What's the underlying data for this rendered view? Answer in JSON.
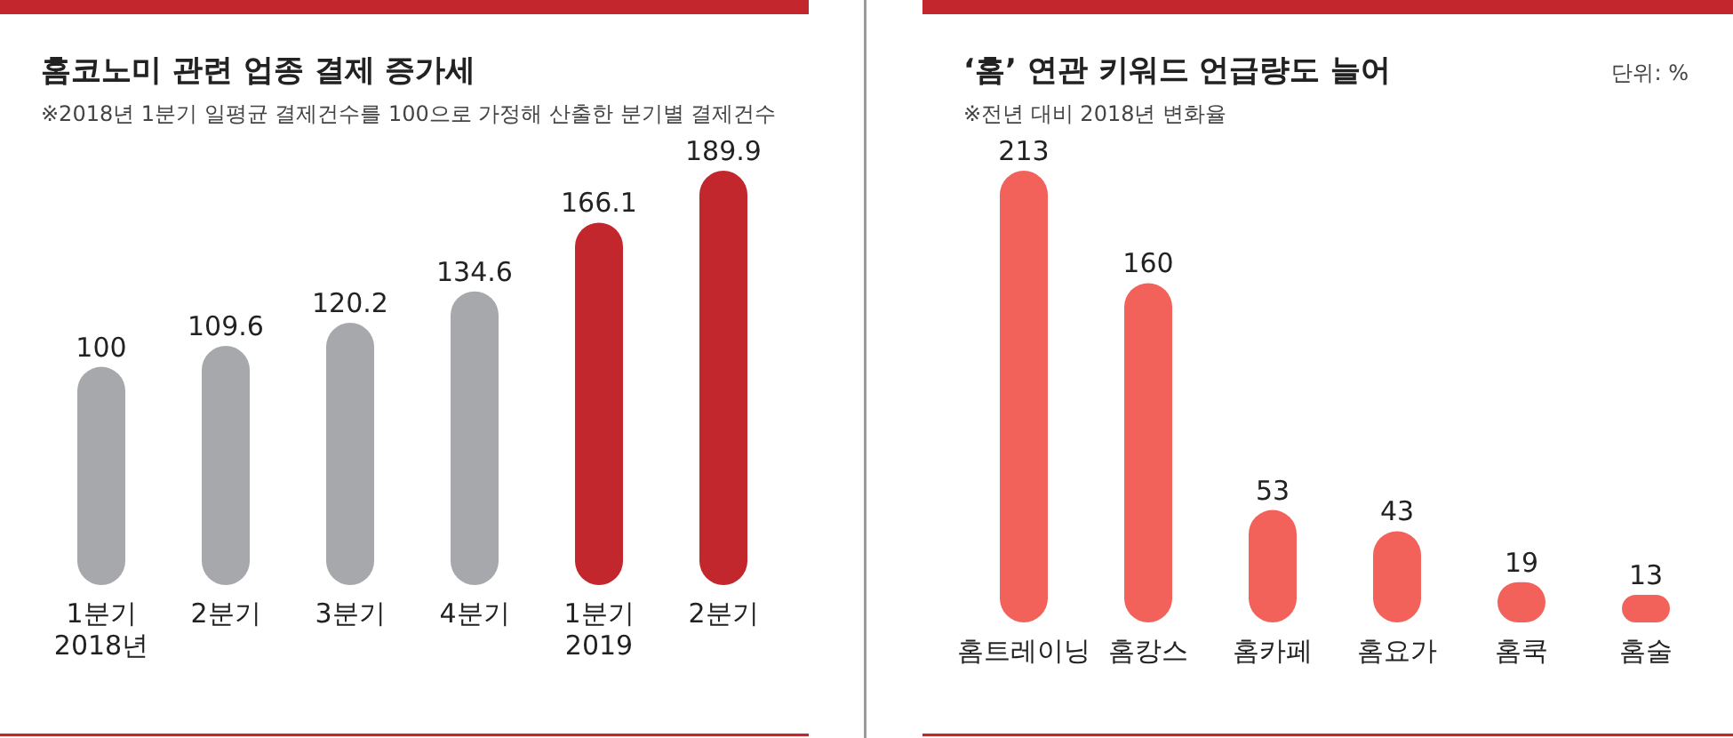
{
  "chart_data": [
    {
      "type": "bar",
      "title": "홈코노미 관련 업종 결제 증가세",
      "subtitle": "※2018년 1분기 일평균 결제건수를 100으로 가정해 산출한 분기별 결제건수",
      "categories": [
        "1분기\n2018년",
        "2분기",
        "3분기",
        "4분기",
        "1분기\n2019",
        "2분기"
      ],
      "values": [
        100,
        109.6,
        120.2,
        134.6,
        166.1,
        189.9
      ],
      "colors": [
        "#a7a8ab",
        "#a7a8ab",
        "#a7a8ab",
        "#a7a8ab",
        "#c1272d",
        "#c1272d"
      ],
      "data_labels": true,
      "tick_labels": "x"
    },
    {
      "type": "bar",
      "title": "‘홈’ 연관 키워드 언급량도 늘어",
      "subtitle": "※전년 대비 2018년 변화율",
      "annotations": [
        "단위: %"
      ],
      "categories": [
        "홈트레이닝",
        "홈캉스",
        "홈카페",
        "홈요가",
        "홈쿡",
        "홈술"
      ],
      "values": [
        213,
        160,
        53,
        43,
        19,
        13
      ],
      "color": "#f2625a",
      "data_labels": true,
      "tick_labels": "x"
    }
  ]
}
